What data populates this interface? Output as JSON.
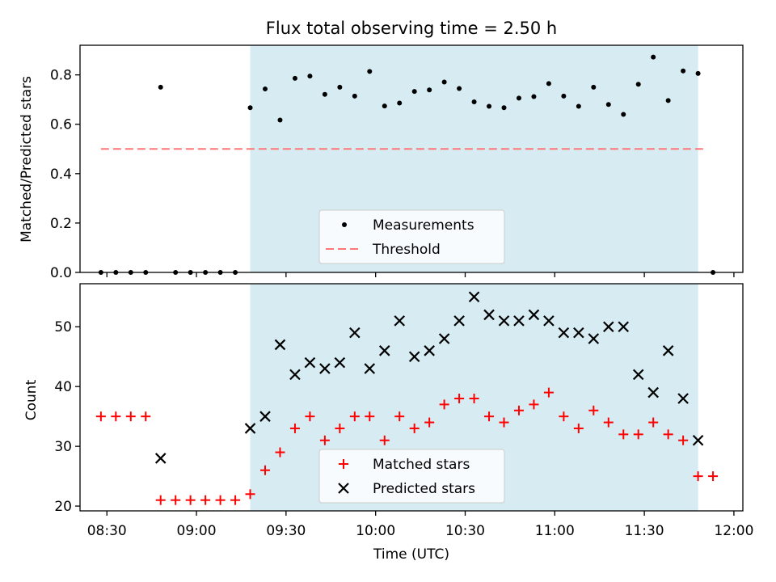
{
  "chart_data": [
    {
      "type": "scatter",
      "title": "Flux total observing time = 2.50 h",
      "xlabel": "",
      "ylabel": "Matched/Predicted stars",
      "xlim": [
        "08:21",
        "12:03"
      ],
      "ylim": [
        0,
        0.92
      ],
      "yticks": [
        0.0,
        0.2,
        0.4,
        0.6,
        0.8
      ],
      "ytick_labels": [
        "0.0",
        "0.2",
        "0.4",
        "0.6",
        "0.8"
      ],
      "shaded_span": {
        "x_start": "09:18",
        "x_end": "11:48",
        "color": "#add8e6"
      },
      "series": [
        {
          "name": "Measurements",
          "kind": "scatter",
          "marker": "dot",
          "color": "#000000",
          "x": [
            "08:28",
            "08:33",
            "08:38",
            "08:43",
            "08:48",
            "08:53",
            "08:58",
            "09:03",
            "09:08",
            "09:13",
            "09:18",
            "09:23",
            "09:28",
            "09:33",
            "09:38",
            "09:43",
            "09:48",
            "09:53",
            "09:58",
            "10:03",
            "10:08",
            "10:13",
            "10:18",
            "10:23",
            "10:28",
            "10:33",
            "10:38",
            "10:43",
            "10:48",
            "10:53",
            "10:58",
            "11:03",
            "11:08",
            "11:13",
            "11:18",
            "11:23",
            "11:28",
            "11:33",
            "11:38",
            "11:43",
            "11:48",
            "11:53"
          ],
          "y": [
            0.0,
            0.0,
            0.0,
            0.0,
            0.75,
            0.0,
            0.0,
            0.0,
            0.0,
            0.0,
            0.667,
            0.743,
            0.617,
            0.786,
            0.795,
            0.721,
            0.75,
            0.714,
            0.814,
            0.674,
            0.686,
            0.733,
            0.739,
            0.771,
            0.745,
            0.691,
            0.673,
            0.667,
            0.706,
            0.712,
            0.765,
            0.714,
            0.673,
            0.75,
            0.68,
            0.64,
            0.762,
            0.872,
            0.696,
            0.816,
            0.806,
            0.0
          ]
        },
        {
          "name": "Threshold",
          "kind": "line",
          "style": "dashed",
          "color": "#ff7777",
          "x": [
            "08:28",
            "11:51"
          ],
          "y": [
            0.5,
            0.5
          ]
        }
      ],
      "legend": {
        "placement": "bottom-center",
        "entries": [
          "Measurements",
          "Threshold"
        ]
      }
    },
    {
      "type": "scatter",
      "title": "",
      "xlabel": "Time (UTC)",
      "ylabel": "Count",
      "xlim": [
        "08:21",
        "12:03"
      ],
      "ylim": [
        19.2,
        57.2
      ],
      "yticks": [
        20,
        30,
        40,
        50
      ],
      "ytick_labels": [
        "20",
        "30",
        "40",
        "50"
      ],
      "xticks": [
        "08:30",
        "09:00",
        "09:30",
        "10:00",
        "10:30",
        "11:00",
        "11:30",
        "12:00"
      ],
      "shaded_span": {
        "x_start": "09:18",
        "x_end": "11:48",
        "color": "#add8e6"
      },
      "series": [
        {
          "name": "Matched stars",
          "kind": "scatter",
          "marker": "plus",
          "color": "#ff0000",
          "x": [
            "08:28",
            "08:33",
            "08:38",
            "08:43",
            "08:48",
            "08:53",
            "08:58",
            "09:03",
            "09:08",
            "09:13",
            "09:18",
            "09:23",
            "09:28",
            "09:33",
            "09:38",
            "09:43",
            "09:48",
            "09:53",
            "09:58",
            "10:03",
            "10:08",
            "10:13",
            "10:18",
            "10:23",
            "10:28",
            "10:33",
            "10:38",
            "10:43",
            "10:48",
            "10:53",
            "10:58",
            "11:03",
            "11:08",
            "11:13",
            "11:18",
            "11:23",
            "11:28",
            "11:33",
            "11:38",
            "11:43",
            "11:48",
            "11:53"
          ],
          "y": [
            35,
            35,
            35,
            35,
            21,
            21,
            21,
            21,
            21,
            21,
            22,
            26,
            29,
            33,
            35,
            31,
            33,
            35,
            35,
            31,
            35,
            33,
            34,
            37,
            38,
            38,
            35,
            34,
            36,
            37,
            39,
            35,
            33,
            36,
            34,
            32,
            32,
            34,
            32,
            31,
            25,
            25
          ]
        },
        {
          "name": "Predicted stars",
          "kind": "scatter",
          "marker": "x",
          "color": "#000000",
          "x": [
            "08:48",
            "09:18",
            "09:23",
            "09:28",
            "09:33",
            "09:38",
            "09:43",
            "09:48",
            "09:53",
            "09:58",
            "10:03",
            "10:08",
            "10:13",
            "10:18",
            "10:23",
            "10:28",
            "10:33",
            "10:38",
            "10:43",
            "10:48",
            "10:53",
            "10:58",
            "11:03",
            "11:08",
            "11:13",
            "11:18",
            "11:23",
            "11:28",
            "11:33",
            "11:38",
            "11:43",
            "11:48"
          ],
          "y": [
            28,
            33,
            35,
            47,
            42,
            44,
            43,
            44,
            49,
            43,
            46,
            51,
            45,
            46,
            48,
            51,
            55,
            52,
            51,
            51,
            52,
            51,
            49,
            49,
            48,
            50,
            50,
            42,
            39,
            46,
            38,
            31
          ]
        }
      ],
      "legend": {
        "placement": "bottom-center",
        "entries": [
          "Matched stars",
          "Predicted stars"
        ]
      }
    }
  ]
}
